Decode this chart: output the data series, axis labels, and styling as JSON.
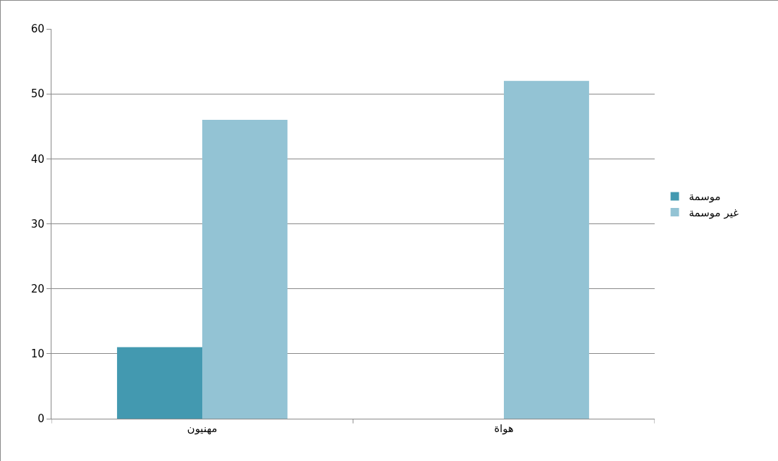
{
  "chart_data": {
    "type": "bar",
    "categories": [
      "مهنيون",
      "هواة"
    ],
    "series": [
      {
        "name": "موسمة",
        "color": "#4399b0",
        "values": [
          11,
          0
        ]
      },
      {
        "name": "غير موسمة",
        "color": "#93c3d4",
        "values": [
          46,
          52
        ]
      }
    ],
    "ylim": [
      0,
      60
    ],
    "yticks": [
      0,
      10,
      20,
      30,
      40,
      50,
      60
    ],
    "grid": "y",
    "legend": "right"
  }
}
